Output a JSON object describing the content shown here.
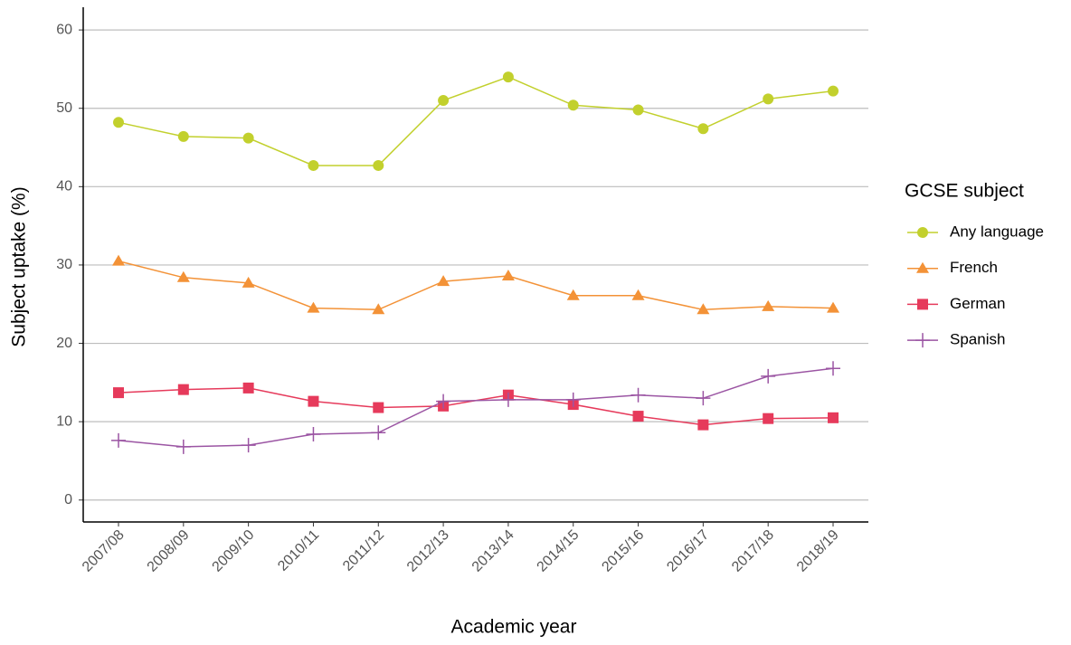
{
  "chart_data": {
    "type": "line",
    "x_label": "Academic year",
    "y_label": "Subject uptake (%)",
    "legend_title": "GCSE subject",
    "legend_position": "right",
    "grid": true,
    "categories": [
      "2007/08",
      "2008/09",
      "2009/10",
      "2010/11",
      "2011/12",
      "2012/13",
      "2013/14",
      "2014/15",
      "2015/16",
      "2016/17",
      "2017/18",
      "2018/19"
    ],
    "series": [
      {
        "name": "Any language",
        "color": "#c2d02d",
        "marker": "circle",
        "values": [
          48.2,
          46.4,
          46.2,
          42.7,
          42.7,
          51.0,
          54.0,
          50.4,
          49.8,
          47.4,
          51.2,
          52.2
        ]
      },
      {
        "name": "French",
        "color": "#f39237",
        "marker": "triangle",
        "values": [
          30.5,
          28.4,
          27.7,
          24.5,
          24.3,
          27.9,
          28.6,
          26.1,
          26.1,
          24.3,
          24.7,
          24.5
        ]
      },
      {
        "name": "German",
        "color": "#e63a5b",
        "marker": "square",
        "values": [
          13.7,
          14.1,
          14.3,
          12.6,
          11.8,
          12.0,
          13.4,
          12.2,
          10.7,
          9.6,
          10.4,
          10.5
        ]
      },
      {
        "name": "Spanish",
        "color": "#9b55a3",
        "marker": "plus",
        "values": [
          7.6,
          6.8,
          7.0,
          8.4,
          8.6,
          12.6,
          12.8,
          12.8,
          13.4,
          13.0,
          15.8,
          16.8
        ]
      }
    ],
    "ylim": [
      -2.8,
      62.9
    ],
    "yticks": [
      0,
      10,
      20,
      30,
      40,
      50,
      60
    ]
  }
}
